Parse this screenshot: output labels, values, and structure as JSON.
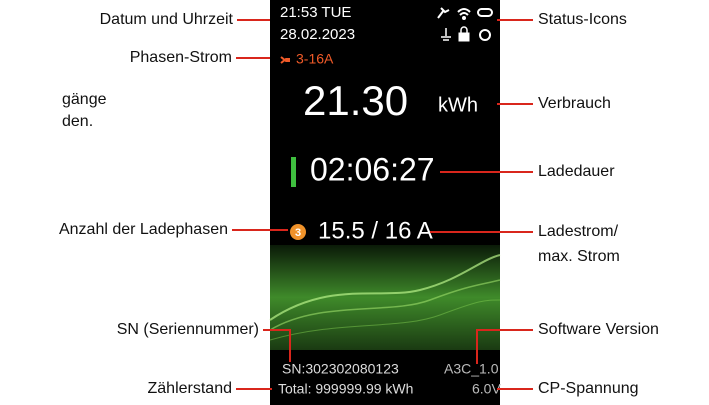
{
  "screen": {
    "time": "21:53  TUE",
    "date": "28.02.2023",
    "phase_current": "3-16A",
    "energy": "21.30",
    "energy_unit": "kWh",
    "duration": "02:06:27",
    "phase_count": "3",
    "current": "15.5 / 16 A",
    "serial": "SN:302302080123",
    "version": "A3C_1.0",
    "total": "Total: 999999.99 kWh",
    "cp_voltage": "6.0V"
  },
  "cut_text": [
    "gänge",
    "den."
  ],
  "labels_left": [
    "Datum und Uhrzeit",
    "Phasen-Strom",
    "Anzahl der Ladephasen",
    "SN (Seriennummer)",
    "Zählerstand"
  ],
  "labels_right": [
    "Status-Icons",
    "Verbrauch",
    "Ladedauer",
    "Ladestrom/",
    "max. Strom",
    "Software Version",
    "CP-Spannung"
  ]
}
